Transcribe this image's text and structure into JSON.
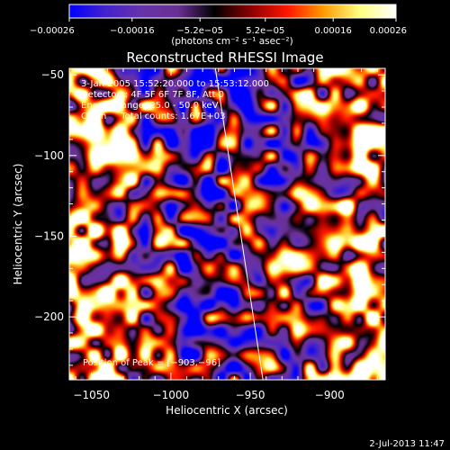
{
  "chart_data": {
    "type": "heatmap",
    "title": "Reconstructed RHESSI Image",
    "xlabel": "Heliocentric X (arcsec)",
    "ylabel": "Heliocentric Y (arcsec)",
    "xlim": [
      -1064,
      -865
    ],
    "ylim": [
      -239,
      -46
    ],
    "x_ticks": [
      -1050,
      -1000,
      -950,
      -900
    ],
    "x_tick_labels": [
      "−1050",
      "−1000",
      "−950",
      "−900"
    ],
    "y_ticks": [
      -50,
      -100,
      -150,
      -200
    ],
    "y_tick_labels": [
      "−50",
      "−100",
      "−150",
      "−200"
    ],
    "colorbar": {
      "range": [
        -0.00026,
        0.00026
      ],
      "ticks": [
        -0.00026,
        -0.00016,
        -5.2e-05,
        5.2e-05,
        0.00016,
        0.00026
      ],
      "tick_labels": [
        "−0.00026",
        "−0.00016",
        "−5.2e−05",
        "5.2e−05",
        "0.00016",
        "0.00026"
      ],
      "unit_label": "(photons cm⁻² s⁻¹ asec⁻²)",
      "colors": [
        "#0000ff",
        "#4422cc",
        "#6633aa",
        "#6a2f93",
        "#000000",
        "#8b0000",
        "#ff1500",
        "#ff9a00",
        "#ffff80",
        "#ffffff"
      ]
    },
    "annotations": [
      "3-Jan-2005 15:52:20.000 to 15:53:12.000",
      "Detectors: 4F 5F 6F 7F 8F, Att 0",
      "Energy Range: 25.0 - 50.0 keV",
      "Clean     Total counts: 1.67E+03"
    ],
    "peak_label": "Position of Peak = [−903,−96]",
    "peak": [
      -903,
      -96
    ],
    "limb_line": [
      [
        -972,
        -46
      ],
      [
        -942,
        -239
      ]
    ],
    "timestamp": "2-Jul-2013 11:47",
    "field_seed": 20050103
  }
}
